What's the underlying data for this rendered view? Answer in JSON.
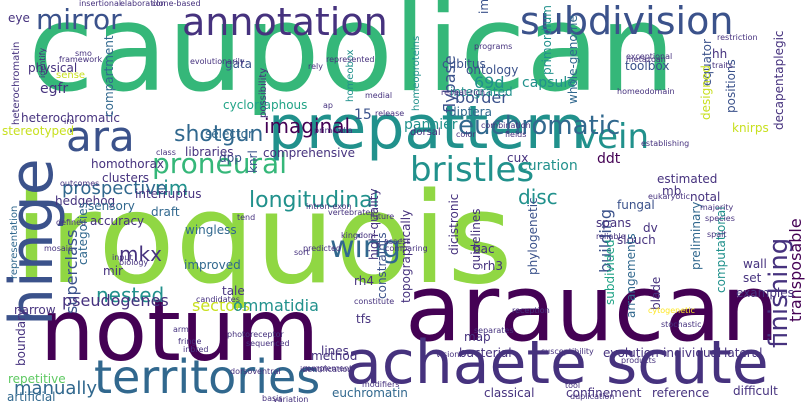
{
  "words": {
    "iroquois": "iroquois",
    "caupolican": "caupolican",
    "araucan": "araucan",
    "notum": "notum",
    "achaete_scute": "achaete scute",
    "prepattern": "prepattern",
    "territories": "territories",
    "hinge": "hinge",
    "annotation": "annotation",
    "subdivision": "subdivision",
    "mirror": "mirror",
    "ara": "ara",
    "bristles": "bristles",
    "vein": "vein",
    "euchromatic": "euchromatic",
    "proneural": "proneural",
    "wing": "wing",
    "finishing": "finishing",
    "imaginal": "imaginal",
    "longitudinal": "longitudinal",
    "shotgun": "shotgun",
    "rim": "rim",
    "prospective": "prospective",
    "disc": "disc",
    "transposable": "transposable",
    "nested": "nested",
    "mkx": "mkx",
    "superclass": "superclass",
    "pseudogenes": "pseudogenes",
    "sectors": "sectors",
    "ommatidia": "ommatidia",
    "manually": "manually",
    "border": "border",
    "flybase": "flybase",
    "ontology": "ontology",
    "immiscible": "immiscible",
    "d69": "69d",
    "capsule": "capsule",
    "curation": "curation",
    "pannier": "pannier",
    "diptera": "diptera",
    "heterochromatic": "heterochromatic",
    "heterochromatin": "heterochromatin",
    "physical": "physical",
    "egfr": "egfr",
    "compartment": "compartment",
    "gata": "gata",
    "cyclorraphous": "cyclorraphous",
    "homeobox": "homeobox",
    "homeoproteins": "homeoproteins",
    "cubitus": "cubitus",
    "integrated": "integrated",
    "primordium": "primordium",
    "whole_genome": "whole-genome",
    "toolbox": "toolbox",
    "equator": "equator",
    "positions": "positions",
    "designed": "designed",
    "decapentaplegic": "decapentaplegic",
    "knirps": "knirps",
    "ddt": "ddt",
    "cux": "cux",
    "dpp": "dpp",
    "knrl": "knrl",
    "selector": "selector",
    "homothorax": "homothorax",
    "libraries": "libraries",
    "comprehensive": "comprehensive",
    "clusters": "clusters",
    "interruptus": "interruptus",
    "hedgehog": "hedgehog",
    "accuracy": "accuracy",
    "sensory": "sensory",
    "draft": "draft",
    "wingless": "wingless",
    "improved": "improved",
    "tale": "tale",
    "mir": "mir",
    "categories": "categories",
    "representation": "representation",
    "narrow": "narrow",
    "boundary": "boundary",
    "repetitive": "repetitive",
    "artificial": "artificial",
    "bac": "bac",
    "rh3": "rh3",
    "rh4": "rh4",
    "dicistronic": "dicistronic",
    "guidelines": "guidelines",
    "topographically": "topographically",
    "phylogenetic": "phylogenetic",
    "fungal": "fungal",
    "mb": "mb",
    "estimated": "estimated",
    "notal": "notal",
    "slouch": "slouch",
    "dv": "dv",
    "building": "building",
    "preliminary": "preliminary",
    "computational": "computational",
    "wall": "wall",
    "set": "set",
    "examples": "examples",
    "subdivided": "subdivided",
    "arrangements": "arrangements",
    "blade": "blade",
    "evolution": "evolution",
    "individual": "individual",
    "lateral": "lateral",
    "reference": "reference",
    "difficult": "difficult",
    "confinement": "confinement",
    "classical": "classical",
    "euchromatin": "euchromatin",
    "method": "method",
    "lines": "lines",
    "constraints": "constraints",
    "tfs": "tfs",
    "bacterial": "bacterial",
    "map": "map",
    "stereotyped": "stereotyped",
    "high_quality": "high-quality",
    "spans": "spans",
    "framework": "framework",
    "sense": "sense",
    "identify": "identify",
    "possibility": "possibility",
    "eye": "eye",
    "insertional": "insertional",
    "elaboration": "elaboration",
    "clone_based": "clone-based",
    "represented": "represented",
    "programs": "programs",
    "metazoan": "metazoan",
    "traits": "traits",
    "restriction": "restriction",
    "exceptional": "exceptional",
    "homeodomain": "homeodomain",
    "hh": "hh",
    "num15": "15",
    "evolutionarily": "evolutionarily",
    "repeat_rich": "repeat-rich",
    "primordia": "primordia",
    "dorsal": "dorsal",
    "color": "color",
    "combination": "combination",
    "fields": "fields",
    "establishing": "establishing",
    "eukaryotic": "eukaryotic",
    "majority": "majority",
    "species": "species",
    "spalt": "spalt",
    "kingdom": "kingdom",
    "assess": "assess",
    "comparing": "comparing",
    "reliable": "reliable",
    "intron_exon": "intron-exon",
    "vertebrates": "vertebrates",
    "future": "future",
    "tend": "tend",
    "outcomes": "outcomes",
    "defined": "defined",
    "mosaic": "mosaic",
    "input": "input",
    "biology": "biology",
    "predicted": "predicted",
    "sort": "sort",
    "candidates": "candidates",
    "fringe": "fringe",
    "inbred": "inbred",
    "sequenced": "sequenced",
    "arm": "arm",
    "photoreceptor": "photoreceptor",
    "complement": "complement",
    "dorsoventral": "dorsoventral",
    "identification": "identification",
    "modifiers": "modifiers",
    "constitute": "constitute",
    "reception": "reception",
    "separates": "separates",
    "cytogenetic": "cytogenetic",
    "stochastic": "stochastic",
    "susceptibility": "susceptibility",
    "products": "products",
    "tool": "tool",
    "duplication": "duplication",
    "basis": "basis",
    "variation": "variation",
    "vision": "vision",
    "medial": "medial",
    "release": "release",
    "rely": "rely",
    "ap": "ap",
    "class": "class",
    "smo": "smo",
    "iro": "iro"
  },
  "palette": {
    "dark_purple": "#440154",
    "indigo": "#46327e",
    "blue_violet": "#3b528b",
    "steel_blue": "#31688e",
    "teal_blue": "#287d8e",
    "teal": "#21918c",
    "sea_green": "#20a386",
    "green": "#35b779",
    "light_green": "#5ec962",
    "lime": "#90d743",
    "yellow_green": "#c8e020",
    "yellow": "#fde725"
  }
}
